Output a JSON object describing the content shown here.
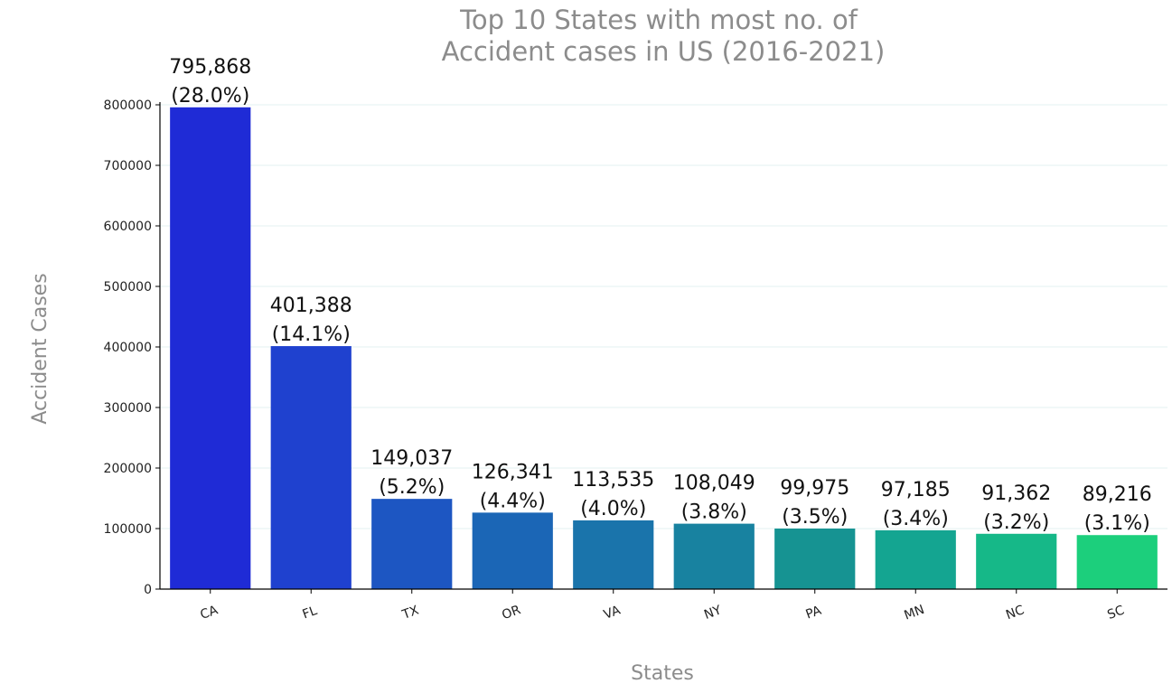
{
  "chart_data": {
    "type": "bar",
    "title_lines": [
      "Top 10 States with most no. of",
      "Accident cases in US (2016-2021)"
    ],
    "xlabel": "States",
    "ylabel": "Accident Cases",
    "categories": [
      "CA",
      "FL",
      "TX",
      "OR",
      "VA",
      "NY",
      "PA",
      "MN",
      "NC",
      "SC"
    ],
    "values": [
      795868,
      401388,
      149037,
      126341,
      113535,
      108049,
      99975,
      97185,
      91362,
      89216
    ],
    "value_labels": [
      "795,868",
      "401,388",
      "149,037",
      "126,341",
      "113,535",
      "108,049",
      "99,975",
      "97,185",
      "91,362",
      "89,216"
    ],
    "percent_labels": [
      "(28.0%)",
      "(14.1%)",
      "(5.2%)",
      "(4.4%)",
      "(4.0%)",
      "(3.8%)",
      "(3.5%)",
      "(3.4%)",
      "(3.2%)",
      "(3.1%)"
    ],
    "yticks": [
      0,
      100000,
      200000,
      300000,
      400000,
      500000,
      600000,
      700000,
      800000
    ],
    "ylim": [
      0,
      800000
    ],
    "grid": true,
    "colors": [
      "#1f2bd6",
      "#1f41cf",
      "#1d56c2",
      "#1b66b6",
      "#1a74ab",
      "#1882a0",
      "#169392",
      "#14a591",
      "#16b888",
      "#1ccf7c"
    ]
  }
}
